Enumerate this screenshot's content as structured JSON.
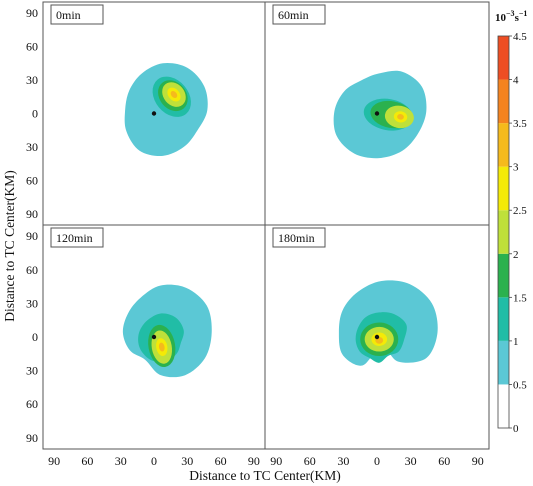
{
  "chart_data": {
    "type": "heatmap",
    "description_free": true,
    "xlabel": "Distance to TC Center(KM)",
    "ylabel": "Distance to TC Center(KM)",
    "x_ticks": [
      "90",
      "60",
      "30",
      "0",
      "30",
      "60",
      "90"
    ],
    "y_ticks": [
      "90",
      "60",
      "30",
      "0",
      "30",
      "60",
      "90"
    ],
    "xlim": [
      -100,
      100
    ],
    "ylim": [
      -100,
      100
    ],
    "colorbar": {
      "unit_base": "10",
      "unit_exp": "−3",
      "unit_s": "s",
      "unit_exp2": "−1",
      "ticks": [
        "0",
        "0.5",
        "1",
        "1.5",
        "2",
        "2.5",
        "3",
        "3.5",
        "4",
        "4.5"
      ],
      "levels": [
        0,
        0.5,
        1,
        1.5,
        2,
        2.5,
        3,
        3.5,
        4,
        4.5
      ],
      "colors": [
        "#ffffff",
        "#5bc8d5",
        "#21bda6",
        "#2bb14e",
        "#bfe03a",
        "#f4ea07",
        "#f5ba1c",
        "#f4831f",
        "#ee4e23",
        "#de1d27"
      ]
    },
    "panels": [
      {
        "label": "0min",
        "center": [
          0,
          0
        ],
        "level_shapes": [
          {
            "level": 0.5,
            "kind": "blob",
            "cx": 8,
            "cy": 3,
            "r": [
              40,
              43,
              44,
              42,
              38,
              35,
              34,
              38,
              42,
              41,
              38,
              36
            ]
          },
          {
            "level": 1.0,
            "kind": "ellipse",
            "cx": 16,
            "cy": 15,
            "rx": 15,
            "ry": 20,
            "rot": 40
          },
          {
            "level": 1.5,
            "kind": "ellipse",
            "cx": 17,
            "cy": 16,
            "rx": 12,
            "ry": 15,
            "rot": 40
          },
          {
            "level": 2.0,
            "kind": "ellipse",
            "cx": 18,
            "cy": 17,
            "rx": 9.5,
            "ry": 12,
            "rot": 40
          },
          {
            "level": 2.5,
            "kind": "ellipse",
            "cx": 18,
            "cy": 17,
            "rx": 5,
            "ry": 7,
            "rot": 40
          },
          {
            "level": 3.0,
            "kind": "ellipse",
            "cx": 18,
            "cy": 17,
            "rx": 2.5,
            "ry": 3.5,
            "rot": 40
          }
        ]
      },
      {
        "label": "60min",
        "center": [
          0,
          0
        ],
        "level_shapes": [
          {
            "level": 0.5,
            "kind": "blob",
            "cx": 2,
            "cy": 2,
            "r": [
              42,
              44,
              41,
              34,
              32,
              36,
              40,
              44,
              44,
              42,
              41,
              40
            ]
          },
          {
            "level": 1.0,
            "kind": "ellipse",
            "cx": 10,
            "cy": -1,
            "rx": 22,
            "ry": 14,
            "rot": -10
          },
          {
            "level": 1.5,
            "kind": "ellipse",
            "cx": 13,
            "cy": -1,
            "rx": 19,
            "ry": 12,
            "rot": -10
          },
          {
            "level": 2.0,
            "kind": "ellipse",
            "cx": 20,
            "cy": -3,
            "rx": 13,
            "ry": 10,
            "rot": -10
          },
          {
            "level": 2.5,
            "kind": "ellipse",
            "cx": 21,
            "cy": -3,
            "rx": 6,
            "ry": 5,
            "rot": -10
          },
          {
            "level": 3.0,
            "kind": "ellipse",
            "cx": 21,
            "cy": -3,
            "rx": 3,
            "ry": 2.5,
            "rot": -10
          }
        ]
      },
      {
        "label": "120min",
        "center": [
          0,
          0
        ],
        "level_shapes": [
          {
            "level": 0.5,
            "kind": "blob",
            "cx": 6,
            "cy": 4,
            "r": [
              46,
              48,
              46,
              42,
              36,
              34,
              34,
              32,
              28,
              38,
              44,
              46
            ]
          },
          {
            "level": 1.0,
            "kind": "blob",
            "cx": 6,
            "cy": -6,
            "r": [
              18,
              24,
              27,
              27,
              24,
              22,
              20,
              18,
              17,
              16,
              16,
              17
            ]
          },
          {
            "level": 1.5,
            "kind": "ellipse",
            "cx": 7,
            "cy": -8,
            "rx": 12,
            "ry": 19,
            "rot": 10
          },
          {
            "level": 2.0,
            "kind": "ellipse",
            "cx": 7,
            "cy": -9,
            "rx": 9,
            "ry": 15,
            "rot": 10
          },
          {
            "level": 2.5,
            "kind": "ellipse",
            "cx": 7,
            "cy": -9,
            "rx": 5,
            "ry": 8,
            "rot": 10
          },
          {
            "level": 3.0,
            "kind": "ellipse",
            "cx": 7,
            "cy": -9,
            "rx": 2.5,
            "ry": 4,
            "rot": 10
          }
        ]
      },
      {
        "label": "180min",
        "center": [
          0,
          0
        ],
        "level_shapes": [
          {
            "level": 0.5,
            "kind": "blob",
            "cx": 4,
            "cy": 4,
            "r": [
              50,
              52,
              50,
              46,
              42,
              40,
              38,
              40,
              34,
              12,
              30,
              46
            ]
          },
          {
            "level": 1.0,
            "kind": "blob",
            "cx": 2,
            "cy": -3,
            "r": [
              22,
              28,
              27,
              25,
              24,
              22,
              21,
              20,
              18,
              20,
              16,
              20
            ]
          },
          {
            "level": 1.5,
            "kind": "ellipse",
            "cx": 2,
            "cy": -2,
            "rx": 17,
            "ry": 15,
            "rot": 0
          },
          {
            "level": 2.0,
            "kind": "ellipse",
            "cx": 2,
            "cy": -2,
            "rx": 13,
            "ry": 11,
            "rot": 0
          },
          {
            "level": 2.5,
            "kind": "ellipse",
            "cx": 2,
            "cy": -2,
            "rx": 7,
            "ry": 6,
            "rot": 0
          },
          {
            "level": 3.0,
            "kind": "ellipse",
            "cx": 2,
            "cy": -3,
            "rx": 3.5,
            "ry": 3,
            "rot": 0
          }
        ]
      }
    ]
  }
}
